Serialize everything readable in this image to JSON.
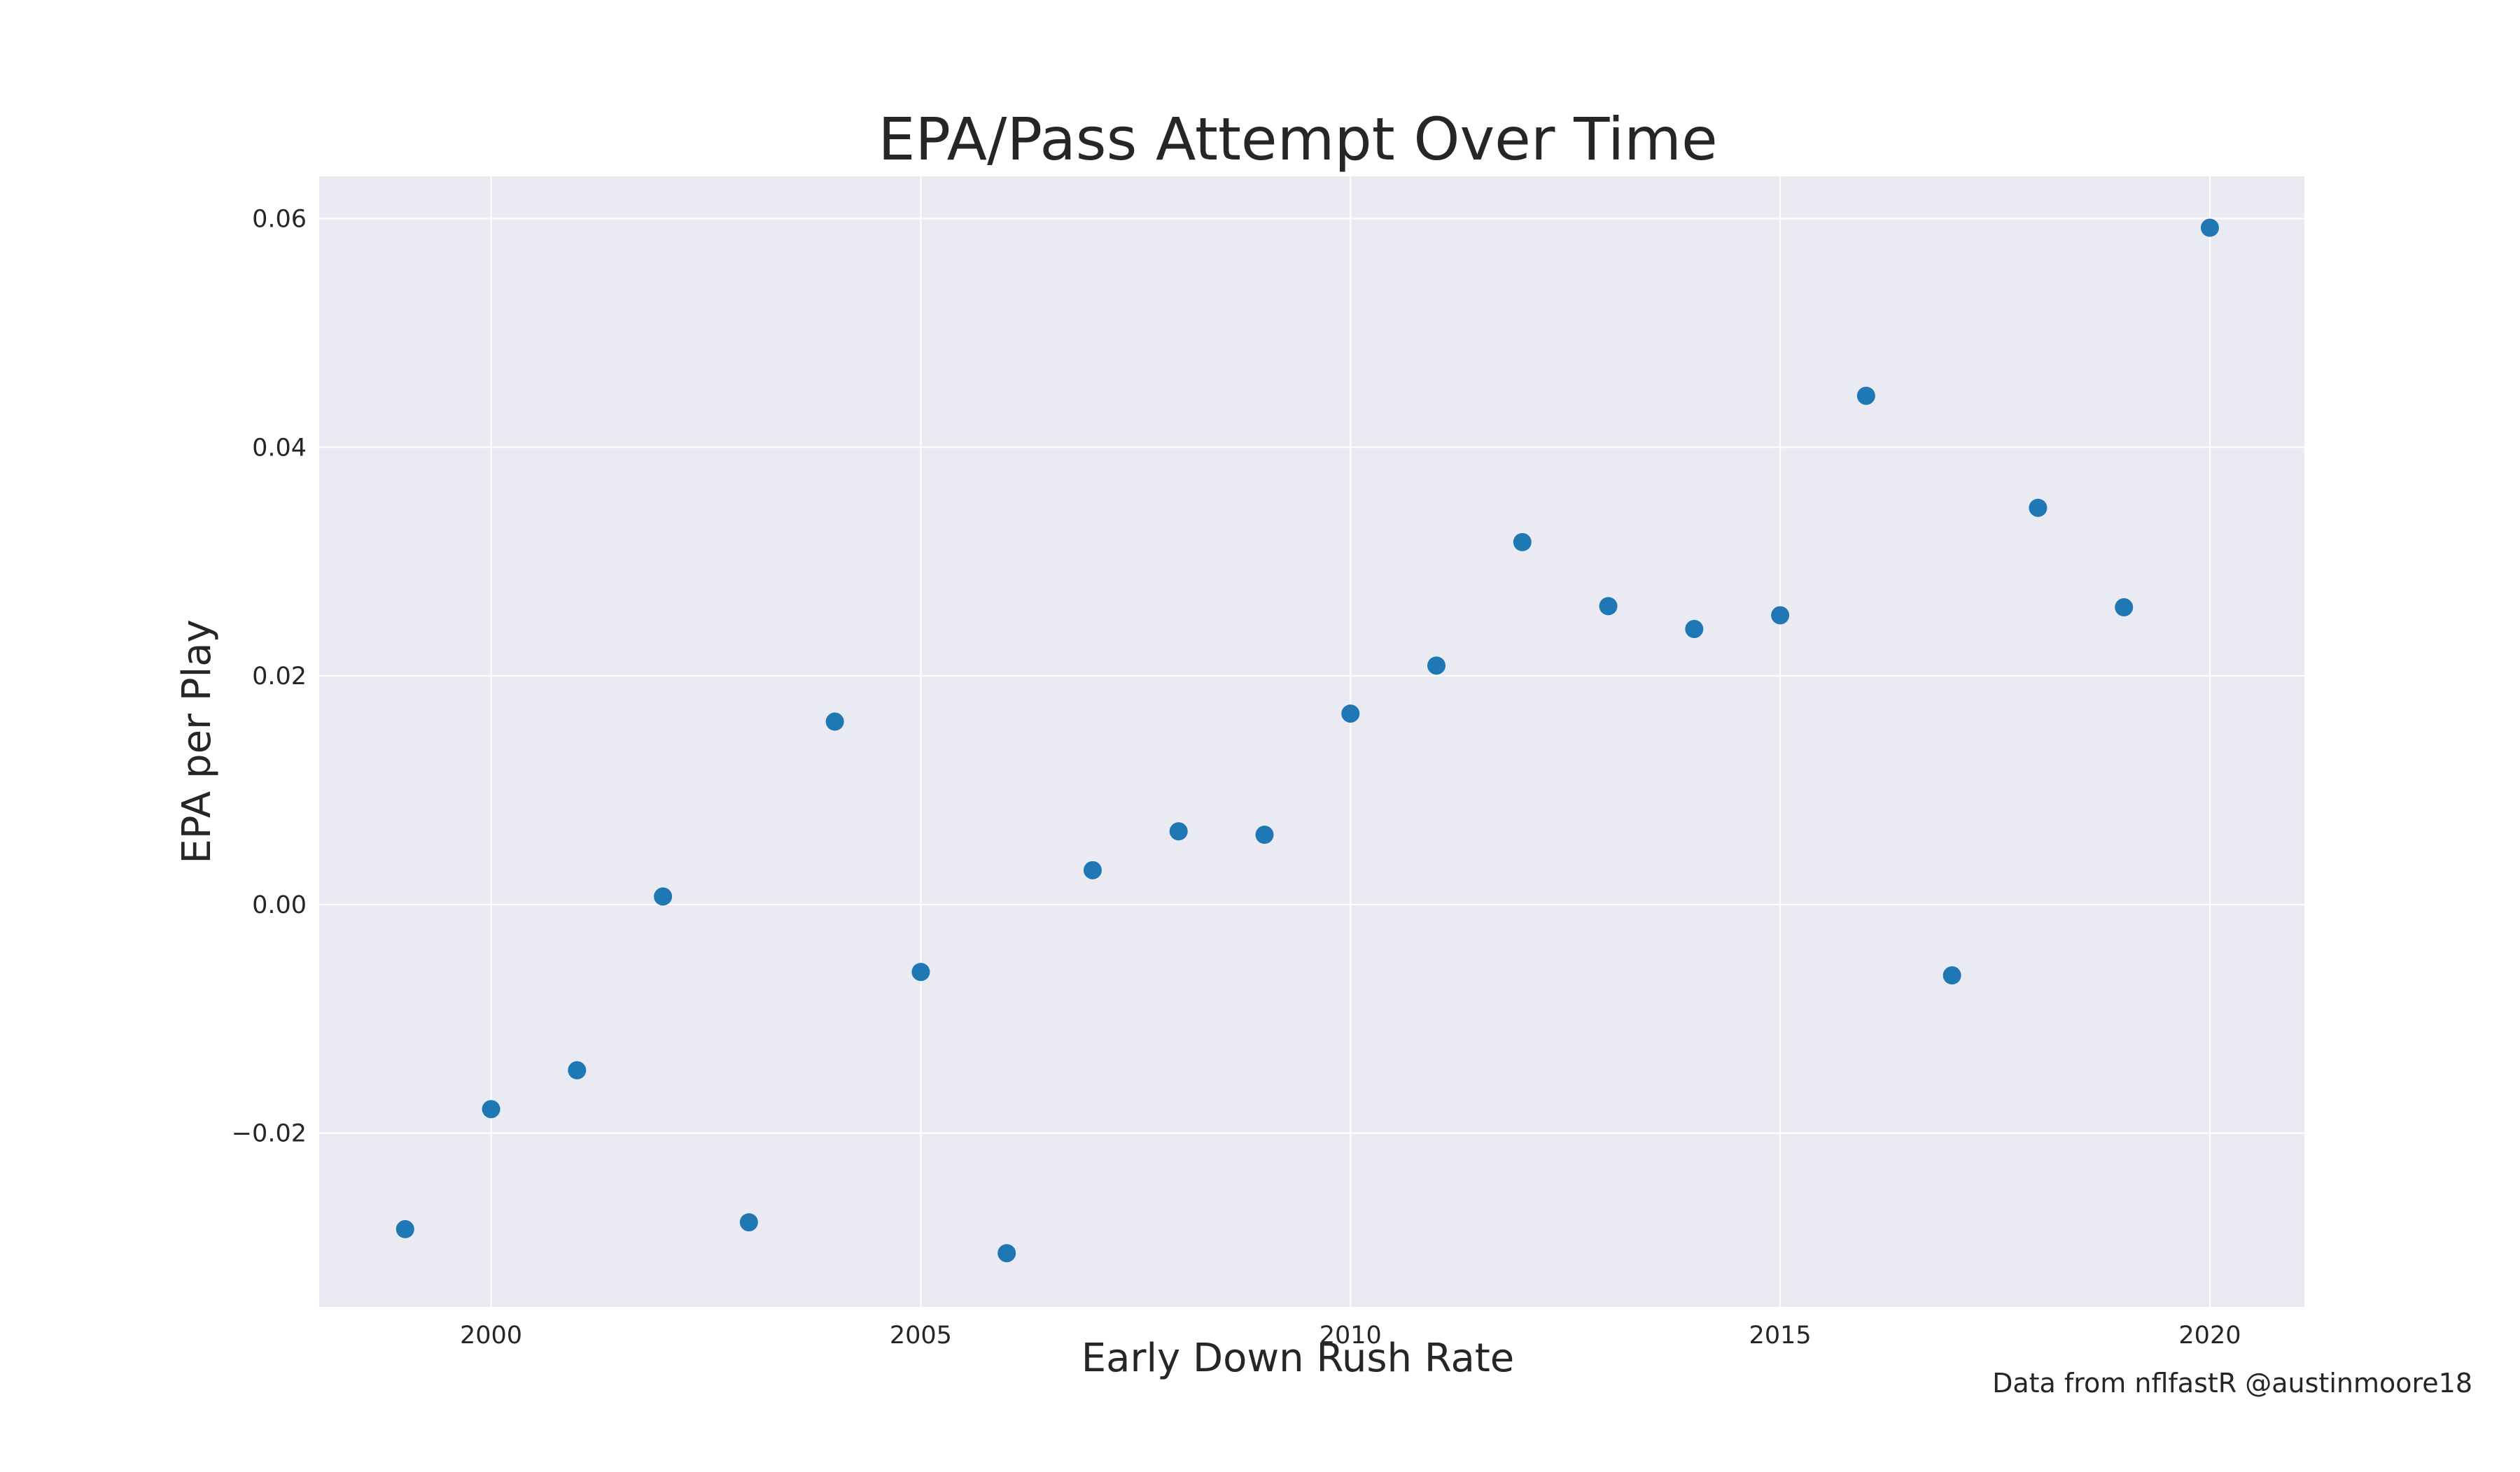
{
  "chart_data": {
    "type": "scatter",
    "title": "EPA/Pass Attempt Over Time",
    "xlabel": "Early Down Rush Rate",
    "ylabel": "EPA per Play",
    "xlim": [
      1998,
      2021.1
    ],
    "ylim": [
      -0.0352,
      0.0637
    ],
    "x_ticks": [
      2000,
      2005,
      2010,
      2015,
      2020
    ],
    "x_tick_labels": [
      "2000",
      "2005",
      "2010",
      "2015",
      "2020"
    ],
    "y_ticks": [
      -0.02,
      0.0,
      0.02,
      0.04,
      0.06
    ],
    "y_tick_labels": [
      "−0.02",
      "0.00",
      "0.02",
      "0.04",
      "0.06"
    ],
    "grid": true,
    "legend": "none",
    "style": "seaborn-darkgrid",
    "points": [
      {
        "x": 1999,
        "y": -0.0284
      },
      {
        "x": 2000,
        "y": -0.0179
      },
      {
        "x": 2001,
        "y": -0.0145
      },
      {
        "x": 2002,
        "y": 0.0007
      },
      {
        "x": 2003,
        "y": -0.0278
      },
      {
        "x": 2004,
        "y": 0.016
      },
      {
        "x": 2005,
        "y": -0.0059
      },
      {
        "x": 2006,
        "y": -0.0305
      },
      {
        "x": 2007,
        "y": 0.003
      },
      {
        "x": 2008,
        "y": 0.0064
      },
      {
        "x": 2009,
        "y": 0.0061
      },
      {
        "x": 2010,
        "y": 0.0167
      },
      {
        "x": 2011,
        "y": 0.0209
      },
      {
        "x": 2012,
        "y": 0.0317
      },
      {
        "x": 2013,
        "y": 0.0261
      },
      {
        "x": 2014,
        "y": 0.0241
      },
      {
        "x": 2015,
        "y": 0.0253
      },
      {
        "x": 2016,
        "y": 0.0445
      },
      {
        "x": 2017,
        "y": -0.0062
      },
      {
        "x": 2018,
        "y": 0.0347
      },
      {
        "x": 2019,
        "y": 0.026
      },
      {
        "x": 2020,
        "y": 0.0592
      }
    ],
    "annotation": "Data from nflfastR @austinmoore18"
  },
  "colors": {
    "plot_background": "#eaeaf2",
    "grid": "#ffffff",
    "marker": "#1f77b4",
    "text": "#262626"
  }
}
